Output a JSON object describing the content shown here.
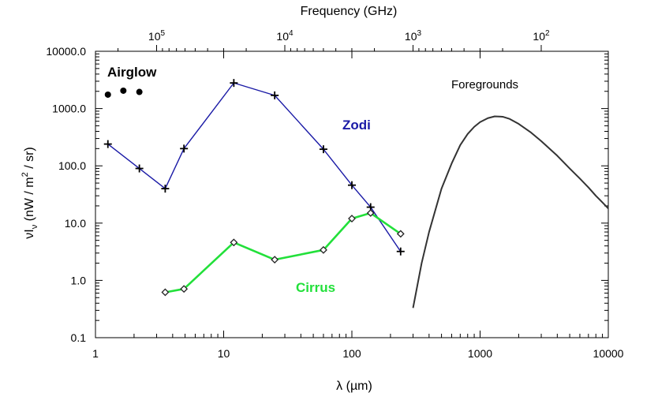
{
  "chart_data": {
    "type": "line",
    "x_axis": {
      "label": "λ (µm)",
      "scale": "log",
      "range": [
        1,
        10000
      ],
      "ticks": [
        1,
        10,
        100,
        1000,
        10000
      ],
      "tick_labels": [
        "1",
        "10",
        "100",
        "1000",
        "10000"
      ]
    },
    "top_axis": {
      "label": "Frequency (GHz)",
      "scale": "log",
      "ticks": [
        {
          "freq_label": "10^5",
          "wavelength_um": 2.998
        },
        {
          "freq_label": "10^4",
          "wavelength_um": 29.98
        },
        {
          "freq_label": "10^3",
          "wavelength_um": 299.8
        },
        {
          "freq_label": "10^2",
          "wavelength_um": 2998
        }
      ]
    },
    "y_axis": {
      "label": "νIν (nW / m^2 / sr)",
      "scale": "log",
      "range": [
        0.1,
        10000
      ],
      "ticks": [
        0.1,
        1,
        10,
        100,
        1000,
        10000
      ],
      "tick_labels": [
        "0.1",
        "1.0",
        "10.0",
        "100.0",
        "1000.0",
        "10000.0"
      ]
    },
    "grid": false,
    "series": [
      {
        "name": "Zodi",
        "color": "#1a1aa6",
        "marker": "plus",
        "points": [
          {
            "x": 1.25,
            "y": 240
          },
          {
            "x": 2.2,
            "y": 90
          },
          {
            "x": 3.5,
            "y": 40
          },
          {
            "x": 4.9,
            "y": 200
          },
          {
            "x": 12,
            "y": 2800
          },
          {
            "x": 25,
            "y": 1700
          },
          {
            "x": 60,
            "y": 195
          },
          {
            "x": 100,
            "y": 46
          },
          {
            "x": 140,
            "y": 19
          },
          {
            "x": 240,
            "y": 3.2
          }
        ]
      },
      {
        "name": "Cirrus",
        "color": "#22e03a",
        "marker": "diamond",
        "points": [
          {
            "x": 3.5,
            "y": 0.62
          },
          {
            "x": 4.9,
            "y": 0.71
          },
          {
            "x": 12,
            "y": 4.6
          },
          {
            "x": 25,
            "y": 2.3
          },
          {
            "x": 60,
            "y": 3.4
          },
          {
            "x": 100,
            "y": 12
          },
          {
            "x": 140,
            "y": 15
          },
          {
            "x": 240,
            "y": 6.5
          }
        ]
      },
      {
        "name": "Airglow",
        "color": "#000000",
        "marker": "dot",
        "points": [
          {
            "x": 1.25,
            "y": 1750
          },
          {
            "x": 1.65,
            "y": 2050
          },
          {
            "x": 2.2,
            "y": 1950
          }
        ]
      },
      {
        "name": "Foregrounds",
        "color": "#333333",
        "marker": "none",
        "points": [
          {
            "x": 300,
            "y": 0.33
          },
          {
            "x": 350,
            "y": 2.0
          },
          {
            "x": 400,
            "y": 7.0
          },
          {
            "x": 500,
            "y": 40
          },
          {
            "x": 600,
            "y": 110
          },
          {
            "x": 700,
            "y": 230
          },
          {
            "x": 800,
            "y": 360
          },
          {
            "x": 900,
            "y": 480
          },
          {
            "x": 1000,
            "y": 580
          },
          {
            "x": 1150,
            "y": 680
          },
          {
            "x": 1300,
            "y": 730
          },
          {
            "x": 1500,
            "y": 720
          },
          {
            "x": 1700,
            "y": 660
          },
          {
            "x": 2000,
            "y": 540
          },
          {
            "x": 2500,
            "y": 380
          },
          {
            "x": 3000,
            "y": 270
          },
          {
            "x": 4000,
            "y": 150
          },
          {
            "x": 5000,
            "y": 90
          },
          {
            "x": 6000,
            "y": 60
          },
          {
            "x": 7000,
            "y": 42
          },
          {
            "x": 8000,
            "y": 30
          },
          {
            "x": 9000,
            "y": 23
          },
          {
            "x": 10000,
            "y": 18
          }
        ]
      }
    ],
    "annotations": [
      {
        "text": "Airglow",
        "color": "#000000",
        "bold": true
      },
      {
        "text": "Zodi",
        "color": "#1a1aa6",
        "bold": true
      },
      {
        "text": "Cirrus",
        "color": "#22e03a",
        "bold": true
      },
      {
        "text": "Foregrounds",
        "color": "#000000",
        "bold": false
      }
    ]
  }
}
